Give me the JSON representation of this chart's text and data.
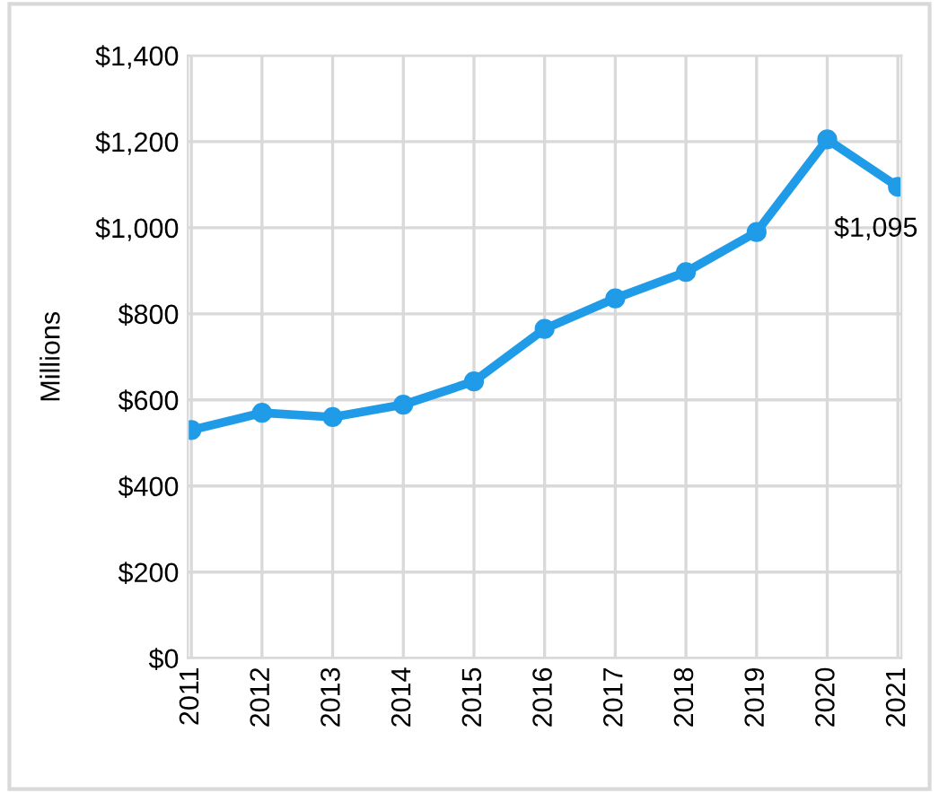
{
  "chart_data": {
    "type": "line",
    "ylabel": "Millions",
    "categories": [
      "2011",
      "2012",
      "2013",
      "2014",
      "2015",
      "2016",
      "2017",
      "2018",
      "2019",
      "2020",
      "2021"
    ],
    "series": [
      {
        "color": "#1f9be8",
        "values": [
          530,
          570,
          560,
          589,
          643,
          765,
          836,
          897,
          990,
          1205,
          1095
        ],
        "value_labels": [
          null,
          null,
          null,
          null,
          null,
          null,
          null,
          null,
          null,
          null,
          "$1,095"
        ]
      }
    ],
    "ylim": [
      0,
      1400
    ],
    "yticks": [
      {
        "value": 0,
        "label": "$0"
      },
      {
        "value": 200,
        "label": "$200"
      },
      {
        "value": 400,
        "label": "$400"
      },
      {
        "value": 600,
        "label": "$600"
      },
      {
        "value": 800,
        "label": "$800"
      },
      {
        "value": 1000,
        "label": "$1,000"
      },
      {
        "value": 1200,
        "label": "$1,200"
      },
      {
        "value": 1400,
        "label": "$1,400"
      }
    ],
    "grid": true,
    "marker": "circle",
    "line_style": "solid",
    "legend": false
  }
}
